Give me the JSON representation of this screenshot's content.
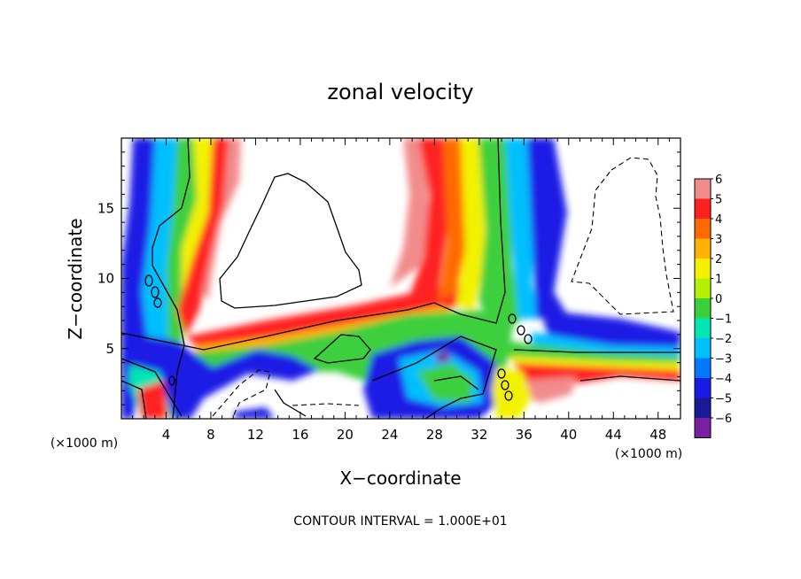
{
  "chart_data": {
    "type": "heatmap",
    "title": "zonal velocity",
    "xlabel": "X−coordinate",
    "ylabel": "Z−coordinate",
    "x_unit_label": "(×1000 m)",
    "z_unit_label": "(×1000 m)",
    "xlim": [
      0,
      50
    ],
    "ylim": [
      0,
      20
    ],
    "x_ticks": [
      4,
      8,
      12,
      16,
      20,
      24,
      28,
      32,
      36,
      40,
      44,
      48
    ],
    "y_ticks": [
      5,
      10,
      15
    ],
    "colorbar": {
      "levels": [
        6,
        5,
        4,
        3,
        2,
        1,
        0,
        -1,
        -2,
        -3,
        -4,
        -5,
        -6
      ],
      "labels": [
        "6",
        "5",
        "4",
        "3",
        "2",
        "1",
        "0",
        "−1",
        "−2",
        "−3",
        "−4",
        "−5",
        "−6"
      ],
      "colors": [
        "#f28c8c",
        "#ff2020",
        "#ff6a00",
        "#ffb300",
        "#f2f200",
        "#b4f000",
        "#3ccf3c",
        "#00e6b4",
        "#00bfff",
        "#0078ff",
        "#1a1ae6",
        "#1a1a99",
        "#7a1fa2"
      ],
      "range": [
        -6,
        6
      ]
    },
    "contour_interval_text": "CONTOUR INTERVAL = 1.000E+01",
    "grid": false
  }
}
